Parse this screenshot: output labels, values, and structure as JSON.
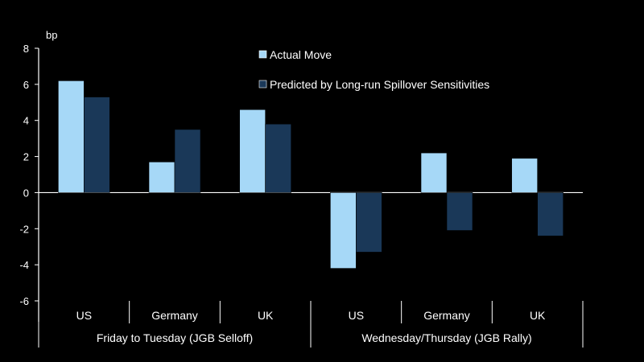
{
  "chart_data": {
    "type": "bar",
    "title": "",
    "ylabel": "bp",
    "xlabel": "",
    "ylim": [
      -6,
      8
    ],
    "yticks": [
      8,
      6,
      4,
      2,
      0,
      -2,
      -4,
      -6
    ],
    "grid": false,
    "legend_position": "top-center",
    "categories": [
      "US",
      "Germany",
      "UK",
      "US",
      "Germany",
      "UK"
    ],
    "groups": [
      {
        "label": "Friday to Tuesday (JGB Selloff)",
        "categories": [
          0,
          1,
          2
        ]
      },
      {
        "label": "Wednesday/Thursday (JGB Rally)",
        "categories": [
          3,
          4,
          5
        ]
      }
    ],
    "series": [
      {
        "name": "Actual Move",
        "color": "#a6d8f7",
        "values": [
          6.2,
          1.7,
          4.6,
          -4.2,
          2.2,
          1.9
        ]
      },
      {
        "name": "Predicted by Long-run Spillover Sensitivities",
        "color": "#1a3858",
        "values": [
          5.3,
          3.5,
          3.8,
          -3.3,
          -2.1,
          -2.4
        ]
      }
    ]
  }
}
